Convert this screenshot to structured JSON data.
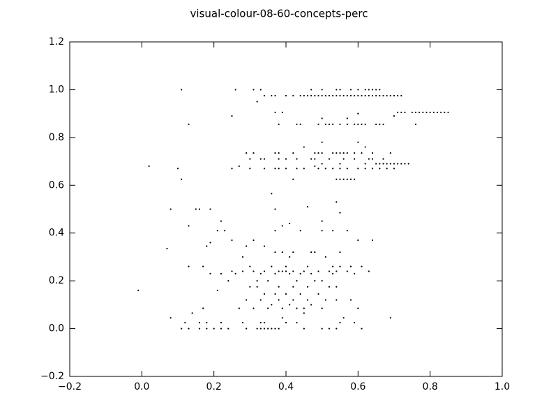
{
  "chart_data": {
    "type": "scatter",
    "title": "visual-colour-08-60-concepts-perc",
    "color": "#000000",
    "xlim": [
      -0.2,
      1.0
    ],
    "ylim": [
      -0.2,
      1.2
    ],
    "xticks": [
      {
        "value": -0.2,
        "label": "−0.2"
      },
      {
        "value": 0,
        "label": "0.0"
      },
      0.2,
      0.4,
      0.6,
      0.8,
      {
        "value": 1.0,
        "label": "1.0"
      }
    ],
    "yticks": [
      {
        "value": -0.2,
        "label": "−0.2"
      },
      {
        "value": 0,
        "label": "0.0"
      },
      0.2,
      0.4,
      0.6,
      0.8,
      {
        "value": 1.0,
        "label": "1.0"
      },
      1.2
    ],
    "x": [
      0.34,
      0.36,
      0.37,
      0.4,
      0.42,
      0.44,
      0.45,
      0.46,
      0.47,
      0.48,
      0.49,
      0.5,
      0.51,
      0.52,
      0.53,
      0.54,
      0.55,
      0.56,
      0.57,
      0.58,
      0.59,
      0.6,
      0.61,
      0.62,
      0.63,
      0.64,
      0.65,
      0.66,
      0.67,
      0.68,
      0.69,
      0.7,
      0.71,
      0.72,
      0.11,
      0.26,
      0.31,
      0.33,
      0.47,
      0.5,
      0.54,
      0.55,
      0.58,
      0.6,
      0.62,
      0.63,
      0.64,
      0.65,
      0.66,
      0.32,
      0.37,
      0.39,
      0.71,
      0.72,
      0.73,
      0.75,
      0.76,
      0.77,
      0.78,
      0.79,
      0.8,
      0.81,
      0.82,
      0.83,
      0.84,
      0.85,
      0.6,
      0.25,
      0.7,
      0.5,
      0.57,
      0.13,
      0.38,
      0.43,
      0.44,
      0.49,
      0.51,
      0.52,
      0.53,
      0.55,
      0.57,
      0.59,
      0.6,
      0.61,
      0.62,
      0.65,
      0.66,
      0.67,
      0.76,
      0.5,
      0.6,
      0.45,
      0.62,
      0.29,
      0.31,
      0.37,
      0.38,
      0.42,
      0.48,
      0.49,
      0.5,
      0.53,
      0.54,
      0.55,
      0.56,
      0.57,
      0.59,
      0.61,
      0.64,
      0.69,
      0.3,
      0.33,
      0.34,
      0.38,
      0.4,
      0.43,
      0.47,
      0.48,
      0.52,
      0.56,
      0.59,
      0.63,
      0.64,
      0.67,
      0.5,
      0.55,
      0.62,
      0.65,
      0.66,
      0.67,
      0.68,
      0.69,
      0.7,
      0.71,
      0.72,
      0.73,
      0.74,
      0.02,
      0.27,
      0.48,
      0.1,
      0.25,
      0.3,
      0.34,
      0.37,
      0.38,
      0.4,
      0.43,
      0.45,
      0.49,
      0.51,
      0.53,
      0.55,
      0.57,
      0.6,
      0.62,
      0.64,
      0.66,
      0.68,
      0.7,
      0.11,
      0.42,
      0.54,
      0.55,
      0.56,
      0.57,
      0.58,
      0.59,
      0.36,
      0.54,
      0.46,
      0.08,
      0.15,
      0.16,
      0.19,
      0.37,
      0.55,
      0.22,
      0.5,
      0.41,
      0.13,
      0.39,
      0.21,
      0.23,
      0.37,
      0.44,
      0.5,
      0.53,
      0.57,
      0.25,
      0.31,
      0.6,
      0.64,
      0.19,
      0.18,
      0.29,
      0.34,
      0.07,
      0.37,
      0.39,
      0.42,
      0.47,
      0.48,
      0.55,
      0.28,
      0.41,
      0.51,
      0.13,
      0.17,
      0.3,
      0.36,
      0.4,
      0.46,
      0.53,
      0.55,
      0.58,
      0.61,
      0.25,
      0.28,
      0.31,
      0.34,
      0.38,
      0.39,
      0.4,
      0.42,
      0.45,
      0.49,
      0.52,
      0.54,
      0.57,
      0.63,
      0.19,
      0.22,
      0.26,
      0.33,
      0.37,
      0.41,
      0.44,
      0.47,
      0.53,
      0.59,
      0.24,
      0.32,
      0.35,
      0.43,
      0.48,
      0.5,
      0.3,
      0.32,
      0.38,
      0.42,
      0.46,
      0.52,
      0.54,
      -0.01,
      0.21,
      0.34,
      0.37,
      0.4,
      0.44,
      0.49,
      0.29,
      0.33,
      0.38,
      0.42,
      0.46,
      0.51,
      0.54,
      0.58,
      0.36,
      0.41,
      0.47,
      0.17,
      0.27,
      0.31,
      0.35,
      0.39,
      0.43,
      0.45,
      0.5,
      0.6,
      0.14,
      0.45,
      0.08,
      0.39,
      0.56,
      0.69,
      0.12,
      0.16,
      0.18,
      0.22,
      0.28,
      0.33,
      0.34,
      0.4,
      0.43,
      0.55,
      0.59,
      0.11,
      0.13,
      0.16,
      0.18,
      0.2,
      0.22,
      0.24,
      0.29,
      0.32,
      0.33,
      0.34,
      0.35,
      0.36,
      0.37,
      0.38,
      0.45,
      0.5,
      0.52,
      0.54,
      0.61
    ],
    "y": [
      0.975,
      0.975,
      0.975,
      0.975,
      0.975,
      0.975,
      0.975,
      0.975,
      0.975,
      0.975,
      0.975,
      0.975,
      0.975,
      0.975,
      0.975,
      0.975,
      0.975,
      0.975,
      0.975,
      0.975,
      0.975,
      0.975,
      0.975,
      0.975,
      0.975,
      0.975,
      0.975,
      0.975,
      0.975,
      0.975,
      0.975,
      0.975,
      0.975,
      0.975,
      1.0,
      1.0,
      1.0,
      1.0,
      1.0,
      1.0,
      1.0,
      1.0,
      1.0,
      1.0,
      1.0,
      1.0,
      1.0,
      1.0,
      1.0,
      0.95,
      0.905,
      0.905,
      0.905,
      0.905,
      0.905,
      0.905,
      0.905,
      0.905,
      0.905,
      0.905,
      0.905,
      0.905,
      0.905,
      0.905,
      0.905,
      0.905,
      0.9,
      0.89,
      0.89,
      0.88,
      0.88,
      0.855,
      0.855,
      0.855,
      0.855,
      0.855,
      0.855,
      0.855,
      0.855,
      0.855,
      0.855,
      0.855,
      0.855,
      0.855,
      0.855,
      0.855,
      0.855,
      0.855,
      0.855,
      0.78,
      0.78,
      0.76,
      0.76,
      0.735,
      0.735,
      0.735,
      0.735,
      0.735,
      0.735,
      0.735,
      0.735,
      0.735,
      0.735,
      0.735,
      0.735,
      0.735,
      0.735,
      0.735,
      0.735,
      0.735,
      0.71,
      0.71,
      0.71,
      0.71,
      0.71,
      0.71,
      0.71,
      0.71,
      0.71,
      0.71,
      0.71,
      0.71,
      0.71,
      0.71,
      0.69,
      0.69,
      0.69,
      0.69,
      0.69,
      0.69,
      0.69,
      0.69,
      0.69,
      0.69,
      0.69,
      0.69,
      0.69,
      0.68,
      0.68,
      0.68,
      0.67,
      0.67,
      0.67,
      0.67,
      0.67,
      0.67,
      0.67,
      0.67,
      0.67,
      0.67,
      0.67,
      0.67,
      0.67,
      0.67,
      0.67,
      0.67,
      0.67,
      0.67,
      0.67,
      0.67,
      0.625,
      0.625,
      0.625,
      0.625,
      0.625,
      0.625,
      0.625,
      0.625,
      0.565,
      0.53,
      0.51,
      0.5,
      0.5,
      0.5,
      0.5,
      0.5,
      0.485,
      0.45,
      0.45,
      0.44,
      0.43,
      0.43,
      0.41,
      0.41,
      0.41,
      0.41,
      0.41,
      0.41,
      0.41,
      0.37,
      0.37,
      0.37,
      0.37,
      0.36,
      0.345,
      0.345,
      0.345,
      0.335,
      0.32,
      0.32,
      0.32,
      0.32,
      0.32,
      0.32,
      0.3,
      0.3,
      0.3,
      0.26,
      0.26,
      0.26,
      0.26,
      0.26,
      0.26,
      0.26,
      0.26,
      0.26,
      0.26,
      0.24,
      0.24,
      0.24,
      0.24,
      0.24,
      0.24,
      0.24,
      0.24,
      0.24,
      0.24,
      0.24,
      0.24,
      0.24,
      0.24,
      0.23,
      0.23,
      0.23,
      0.23,
      0.23,
      0.23,
      0.23,
      0.23,
      0.23,
      0.23,
      0.2,
      0.2,
      0.2,
      0.2,
      0.2,
      0.2,
      0.175,
      0.175,
      0.175,
      0.175,
      0.175,
      0.175,
      0.175,
      0.16,
      0.16,
      0.145,
      0.145,
      0.145,
      0.145,
      0.145,
      0.12,
      0.12,
      0.12,
      0.12,
      0.12,
      0.12,
      0.12,
      0.12,
      0.1,
      0.1,
      0.1,
      0.085,
      0.085,
      0.085,
      0.085,
      0.085,
      0.085,
      0.085,
      0.085,
      0.085,
      0.065,
      0.065,
      0.045,
      0.045,
      0.045,
      0.045,
      0.025,
      0.025,
      0.025,
      0.025,
      0.025,
      0.025,
      0.025,
      0.025,
      0.025,
      0.025,
      0.025,
      0,
      0,
      0,
      0,
      0,
      0,
      0,
      0,
      0,
      0,
      0,
      0,
      0,
      0,
      0,
      0,
      0,
      0,
      0,
      0
    ]
  }
}
